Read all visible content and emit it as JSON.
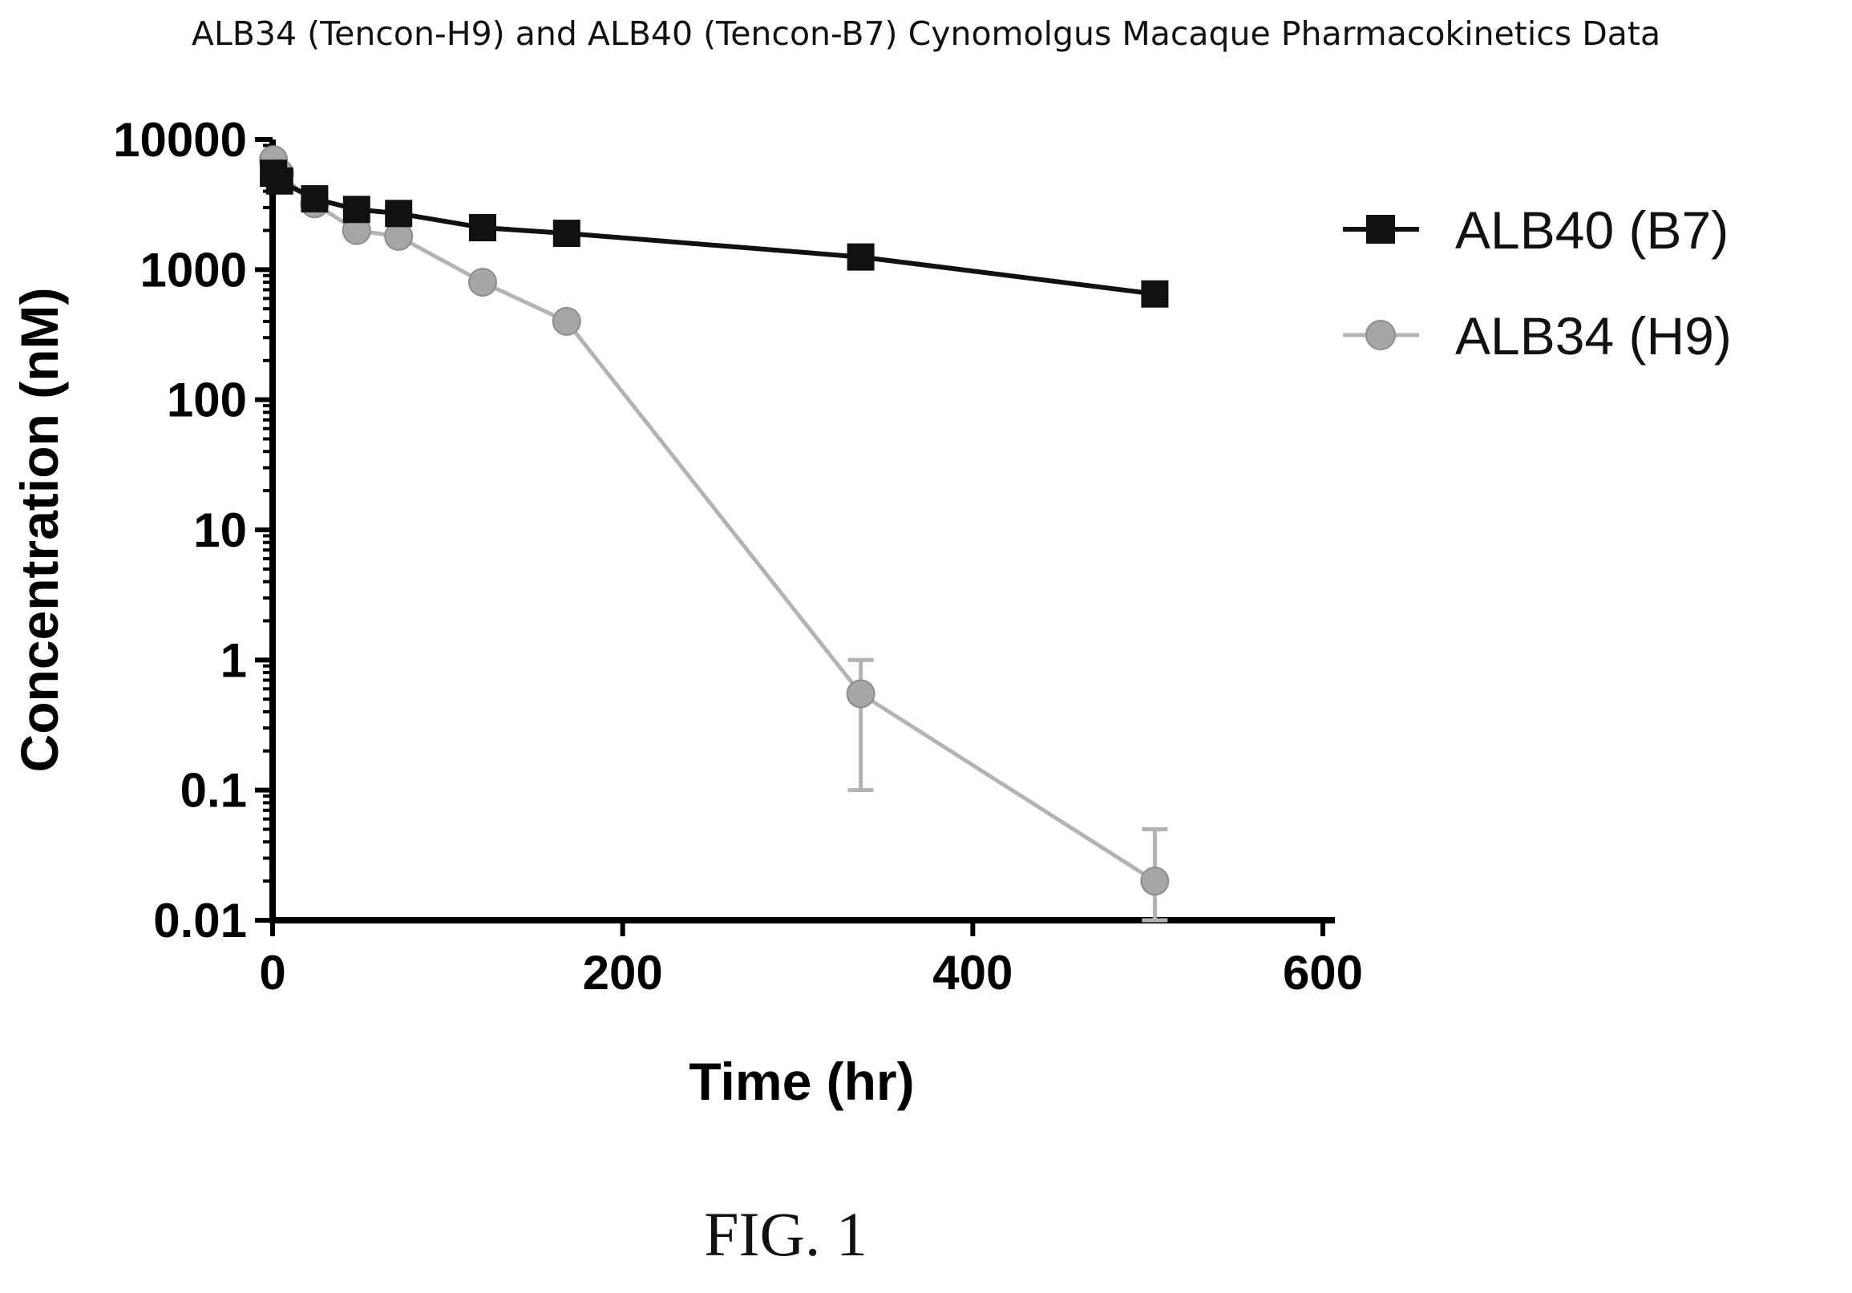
{
  "figure_caption": "FIG. 1",
  "chart_data": {
    "type": "line",
    "title": "ALB34 (Tencon-H9) and ALB40 (Tencon-B7) Cynomolgus Macaque Pharmacokinetics Data",
    "xlabel": "Time (hr)",
    "ylabel": "Concentration (nM)",
    "xlim": [
      0,
      600
    ],
    "ylim": [
      0.01,
      10000
    ],
    "xscale": "linear",
    "yscale": "log",
    "x_ticks": [
      0,
      200,
      400,
      600
    ],
    "x_tick_labels": [
      "0",
      "200",
      "400",
      "600"
    ],
    "y_ticks": [
      0.01,
      0.1,
      1,
      10,
      100,
      1000,
      10000
    ],
    "y_tick_labels": [
      "0.01",
      "0.1",
      "1",
      "10",
      "100",
      "1000",
      "10000"
    ],
    "grid": false,
    "legend_position": "right",
    "series": [
      {
        "name": "ALB40 (B7)",
        "marker": "square",
        "color": "#111111",
        "line_color": "#111111",
        "points": [
          {
            "x": 0.5,
            "y": 5500
          },
          {
            "x": 4,
            "y": 4800
          },
          {
            "x": 24,
            "y": 3500
          },
          {
            "x": 48,
            "y": 2900
          },
          {
            "x": 72,
            "y": 2700
          },
          {
            "x": 120,
            "y": 2100
          },
          {
            "x": 168,
            "y": 1900
          },
          {
            "x": 336,
            "y": 1250
          },
          {
            "x": 504,
            "y": 650
          }
        ]
      },
      {
        "name": "ALB34 (H9)",
        "marker": "circle",
        "color": "#a6a6a6",
        "line_color": "#b3b3b3",
        "points": [
          {
            "x": 0.5,
            "y": 7000
          },
          {
            "x": 4,
            "y": 5500
          },
          {
            "x": 24,
            "y": 3200
          },
          {
            "x": 48,
            "y": 2000
          },
          {
            "x": 72,
            "y": 1800
          },
          {
            "x": 120,
            "y": 800
          },
          {
            "x": 168,
            "y": 400
          },
          {
            "x": 336,
            "y": 0.55,
            "error": [
              0.1,
              1.0
            ]
          },
          {
            "x": 504,
            "y": 0.02,
            "error": [
              0.01,
              0.05
            ]
          }
        ]
      }
    ]
  }
}
